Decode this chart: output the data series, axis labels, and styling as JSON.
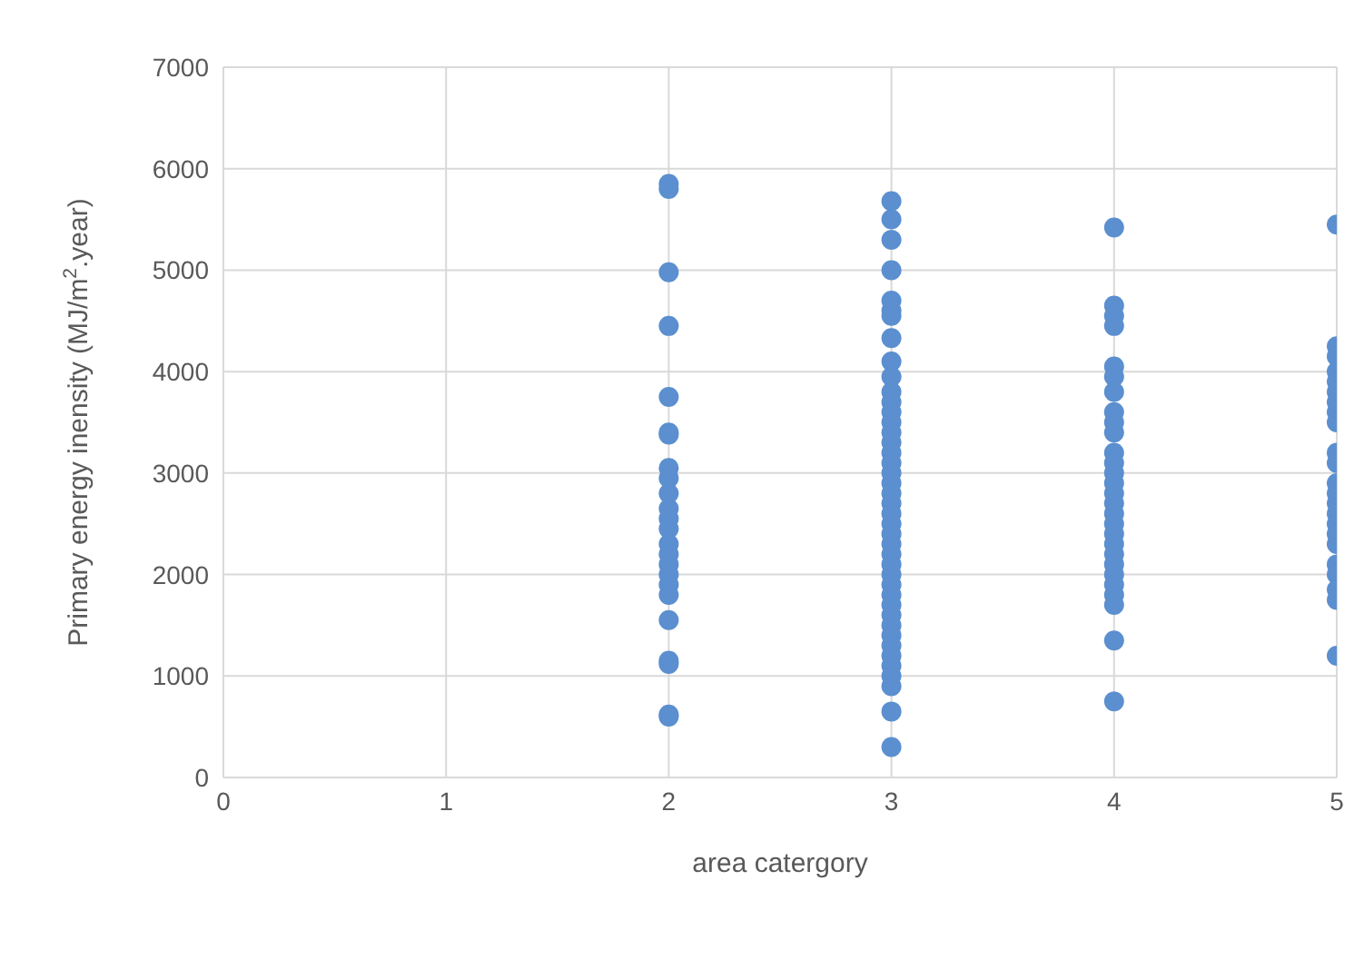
{
  "chart_data": {
    "type": "scatter",
    "xlabel": "area catergory",
    "ylabel": "Primary energy inensity (MJ/m$^{2}$.year)",
    "x": [
      2,
      2,
      2,
      2,
      2,
      2,
      2,
      2,
      2,
      2,
      2,
      2,
      2,
      2,
      2,
      2,
      2,
      2,
      2,
      2,
      2,
      2,
      2,
      2,
      3,
      3,
      3,
      3,
      3,
      3,
      3,
      3,
      3,
      3,
      3,
      3,
      3,
      3,
      3,
      3,
      3,
      3,
      3,
      3,
      3,
      3,
      3,
      3,
      3,
      3,
      3,
      3,
      3,
      3,
      3,
      3,
      3,
      3,
      3,
      3,
      3,
      3,
      3,
      3,
      3,
      3,
      4,
      4,
      4,
      4,
      4,
      4,
      4,
      4,
      4,
      4,
      4,
      4,
      4,
      4,
      4,
      4,
      4,
      4,
      4,
      4,
      4,
      4,
      4,
      4,
      4,
      4,
      4,
      4,
      5,
      5,
      5,
      5,
      5,
      5,
      5,
      5,
      5,
      5,
      5,
      5,
      5,
      5,
      5,
      5,
      5,
      5,
      5,
      5,
      5,
      5,
      5
    ],
    "series": [
      {
        "color": "#5b8fcf",
        "values": [
          5850,
          5800,
          4980,
          4450,
          3750,
          3400,
          3380,
          3050,
          2950,
          2800,
          2650,
          2550,
          2450,
          2300,
          2200,
          2100,
          2000,
          1900,
          1800,
          1550,
          1150,
          1120,
          620,
          600,
          5680,
          5500,
          5300,
          5000,
          4700,
          4600,
          4550,
          4330,
          4100,
          3950,
          3800,
          3700,
          3600,
          3500,
          3400,
          3300,
          3200,
          3100,
          3000,
          2900,
          2800,
          2700,
          2600,
          2500,
          2400,
          2300,
          2200,
          2100,
          2000,
          1900,
          1800,
          1700,
          1600,
          1500,
          1400,
          1300,
          1200,
          1100,
          1000,
          900,
          650,
          300,
          5420,
          4650,
          4550,
          4450,
          4050,
          3950,
          3800,
          3600,
          3500,
          3400,
          3200,
          3100,
          3000,
          2900,
          2800,
          2700,
          2600,
          2500,
          2400,
          2300,
          2200,
          2100,
          2000,
          1900,
          1800,
          1700,
          1350,
          750,
          5450,
          4250,
          4150,
          4000,
          3900,
          3800,
          3700,
          3600,
          3500,
          3200,
          3100,
          2900,
          2800,
          2700,
          2600,
          2500,
          2400,
          2300,
          2100,
          2000,
          1850,
          1750,
          1200
        ]
      }
    ],
    "xlim": [
      0,
      5
    ],
    "xticks": [
      0,
      1,
      2,
      3,
      4,
      5
    ],
    "ylim": [
      0,
      7000
    ],
    "yticks": [
      0,
      1000,
      2000,
      3000,
      4000,
      5000,
      6000,
      7000
    ],
    "grid": true,
    "marker": "circle"
  }
}
